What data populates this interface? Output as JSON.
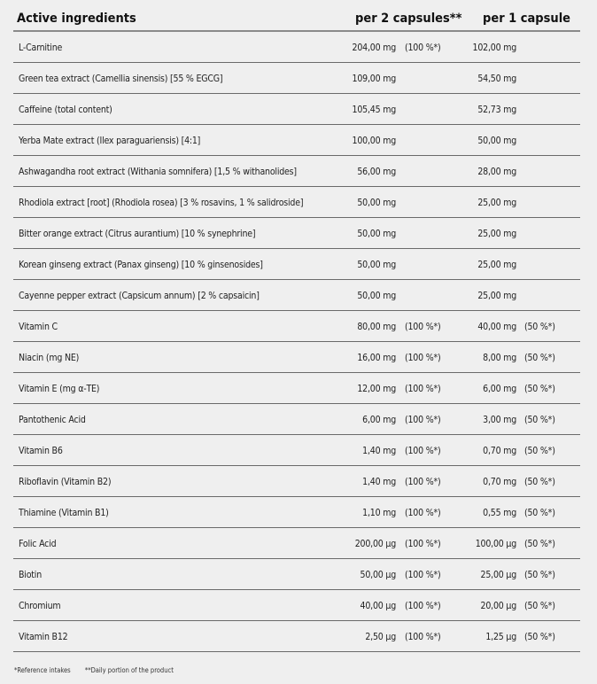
{
  "header": {
    "ingredients": "Active ingredients",
    "per2": "per 2 capsules**",
    "per1": "per 1 capsule"
  },
  "rows": [
    {
      "name": "L-Carnitine",
      "v2": "204,00 mg",
      "p2": "(100 %*)",
      "v1": "102,00 mg",
      "p1": ""
    },
    {
      "name": "Green tea extract (Camellia sinensis) [55 % EGCG]",
      "v2": "109,00 mg",
      "p2": "",
      "v1": "54,50 mg",
      "p1": ""
    },
    {
      "name": "Caffeine (total content)",
      "v2": "105,45 mg",
      "p2": "",
      "v1": "52,73 mg",
      "p1": ""
    },
    {
      "name": "Yerba Mate extract (Ilex paraguariensis) [4:1]",
      "v2": "100,00 mg",
      "p2": "",
      "v1": "50,00 mg",
      "p1": ""
    },
    {
      "name": "Ashwagandha root extract (Withania somnifera) [1,5 % withanolides]",
      "v2": "56,00 mg",
      "p2": "",
      "v1": "28,00 mg",
      "p1": ""
    },
    {
      "name": "Rhodiola extract [root] (Rhodiola rosea) [3 % rosavins, 1 % salidroside]",
      "v2": "50,00 mg",
      "p2": "",
      "v1": "25,00 mg",
      "p1": ""
    },
    {
      "name": "Bitter orange extract (Citrus aurantium) [10 % synephrine]",
      "v2": "50,00 mg",
      "p2": "",
      "v1": "25,00 mg",
      "p1": ""
    },
    {
      "name": "Korean ginseng extract (Panax ginseng) [10 % ginsenosides]",
      "v2": "50,00 mg",
      "p2": "",
      "v1": "25,00 mg",
      "p1": ""
    },
    {
      "name": "Cayenne pepper extract (Capsicum annum) [2 % capsaicin]",
      "v2": "50,00 mg",
      "p2": "",
      "v1": "25,00 mg",
      "p1": ""
    },
    {
      "name": "Vitamin C",
      "v2": "80,00 mg",
      "p2": "(100 %*)",
      "v1": "40,00 mg",
      "p1": "(50 %*)"
    },
    {
      "name": "Niacin (mg NE)",
      "v2": "16,00 mg",
      "p2": "(100 %*)",
      "v1": "8,00 mg",
      "p1": "(50 %*)"
    },
    {
      "name": "Vitamin E (mg α-TE)",
      "v2": "12,00 mg",
      "p2": "(100 %*)",
      "v1": "6,00 mg",
      "p1": "(50 %*)"
    },
    {
      "name": "Pantothenic Acid",
      "v2": "6,00 mg",
      "p2": "(100 %*)",
      "v1": "3,00 mg",
      "p1": "(50 %*)"
    },
    {
      "name": "Vitamin B6",
      "v2": "1,40 mg",
      "p2": "(100 %*)",
      "v1": "0,70 mg",
      "p1": "(50 %*)"
    },
    {
      "name": "Riboflavin (Vitamin B2)",
      "v2": "1,40 mg",
      "p2": "(100 %*)",
      "v1": "0,70 mg",
      "p1": "(50 %*)"
    },
    {
      "name": "Thiamine (Vitamin B1)",
      "v2": "1,10 mg",
      "p2": "(100 %*)",
      "v1": "0,55 mg",
      "p1": "(50 %*)"
    },
    {
      "name": "Folic Acid",
      "v2": "200,00 µg",
      "p2": "(100 %*)",
      "v1": "100,00 µg",
      "p1": "(50 %*)"
    },
    {
      "name": "Biotin",
      "v2": "50,00 µg",
      "p2": "(100 %*)",
      "v1": "25,00 µg",
      "p1": "(50 %*)"
    },
    {
      "name": "Chromium",
      "v2": "40,00 µg",
      "p2": "(100 %*)",
      "v1": "20,00 µg",
      "p1": "(50 %*)"
    },
    {
      "name": "Vitamin B12",
      "v2": "2,50 µg",
      "p2": "(100 %*)",
      "v1": "1,25 µg",
      "p1": "(50 %*)"
    }
  ],
  "footer": {
    "note1": "*Reference intakes",
    "note2": "**Daily portion of the product"
  }
}
